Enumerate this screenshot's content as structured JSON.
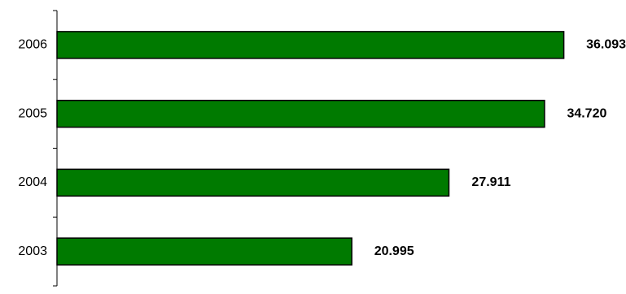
{
  "chart_data": {
    "type": "bar",
    "orientation": "horizontal",
    "categories": [
      "2003",
      "2004",
      "2005",
      "2006"
    ],
    "values": [
      20.995,
      27.911,
      34.72,
      36.093
    ],
    "data_labels": [
      "20.995",
      "27.911",
      "34.720",
      "36.093"
    ],
    "title": "",
    "xlabel": "",
    "ylabel": "",
    "xlim": [
      0,
      40
    ],
    "grid": false,
    "legend": "none",
    "bar_color": "#007A00",
    "bar_edge_color": "#000000"
  }
}
